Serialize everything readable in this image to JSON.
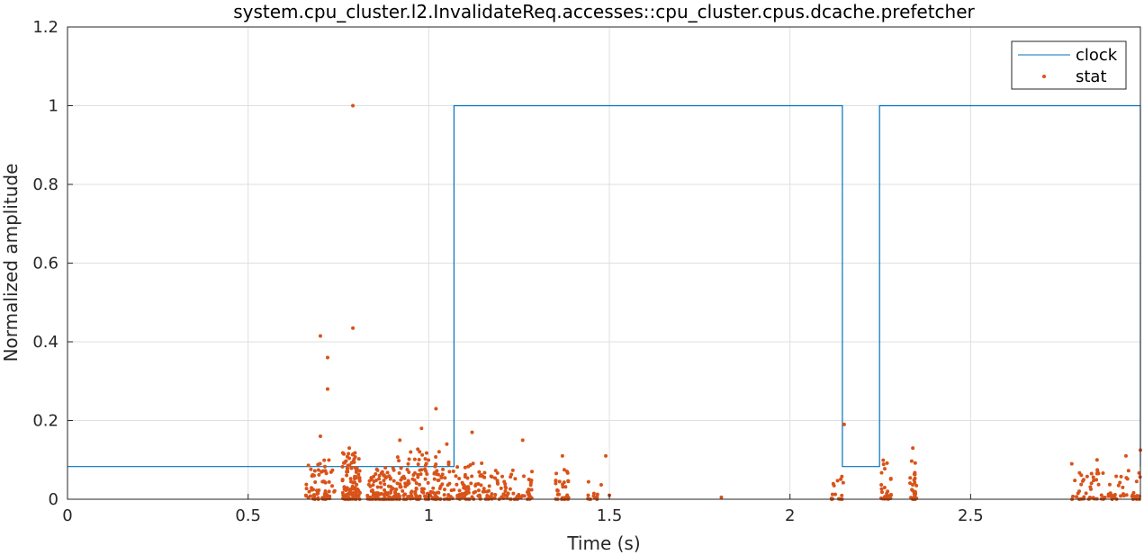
{
  "chart_data": {
    "type": "line",
    "title": "system.cpu_cluster.l2.InvalidateReq.accesses::cpu_cluster.cpus.dcache.prefetcher",
    "xlabel": "Time (s)",
    "ylabel": "Normalized amplitude",
    "xlim": [
      0,
      2.97
    ],
    "ylim": [
      0,
      1.2
    ],
    "xticks": [
      0,
      0.5,
      1,
      1.5,
      2,
      2.5
    ],
    "xtick_labels": [
      "0",
      "0.5",
      "1",
      "1.5",
      "2",
      "2.5"
    ],
    "yticks": [
      0,
      0.2,
      0.4,
      0.6,
      0.8,
      1,
      1.2
    ],
    "ytick_labels": [
      "0",
      "0.2",
      "0.4",
      "0.6",
      "0.8",
      "1",
      "1.2"
    ],
    "grid": true,
    "legend_position": "top-right",
    "colors": {
      "clock": "#0072BD",
      "stat": "#D95319",
      "grid": "#DFDFDF",
      "axis": "#262626"
    },
    "series": [
      {
        "name": "clock",
        "kind": "step-line",
        "x": [
          0,
          1.07,
          1.07,
          2.145,
          2.145,
          2.248,
          2.248,
          2.97,
          2.97
        ],
        "y": [
          0.083,
          0.083,
          1,
          1,
          0.083,
          0.083,
          1,
          1,
          0.083
        ]
      },
      {
        "name": "stat",
        "kind": "scatter",
        "x": [
          0.79,
          0.7,
          0.79,
          0.72,
          0.72,
          1.02,
          0.98,
          0.92,
          1.12,
          1.05,
          0.95,
          0.88,
          0.78,
          0.7,
          1.26,
          1.37,
          1.49,
          2.15,
          2.34,
          2.97,
          2.78,
          2.85,
          2.93,
          1.81,
          1.5,
          0.66
        ],
        "y": [
          1.0,
          0.415,
          0.435,
          0.36,
          0.28,
          0.23,
          0.18,
          0.15,
          0.17,
          0.14,
          0.12,
          0.08,
          0.13,
          0.16,
          0.15,
          0.11,
          0.11,
          0.19,
          0.13,
          0.125,
          0.09,
          0.1,
          0.11,
          0.005,
          0.01,
          0.01
        ],
        "clusters": [
          {
            "x": [
              0.66,
              0.74
            ],
            "y_max": 0.1,
            "count": 70
          },
          {
            "x": [
              0.76,
              0.81
            ],
            "y_max": 0.12,
            "count": 110
          },
          {
            "x": [
              0.83,
              0.91
            ],
            "y_max": 0.08,
            "count": 100
          },
          {
            "x": [
              0.91,
              1.03
            ],
            "y_max": 0.13,
            "count": 140
          },
          {
            "x": [
              1.03,
              1.15
            ],
            "y_max": 0.1,
            "count": 90
          },
          {
            "x": [
              1.15,
              1.29
            ],
            "y_max": 0.08,
            "count": 80
          },
          {
            "x": [
              1.35,
              1.39
            ],
            "y_max": 0.08,
            "count": 35
          },
          {
            "x": [
              1.44,
              1.48
            ],
            "y_max": 0.05,
            "count": 12
          },
          {
            "x": [
              2.11,
              2.15
            ],
            "y_max": 0.06,
            "count": 15
          },
          {
            "x": [
              2.25,
              2.28
            ],
            "y_max": 0.1,
            "count": 25
          },
          {
            "x": [
              2.33,
              2.35
            ],
            "y_max": 0.12,
            "count": 30
          },
          {
            "x": [
              2.78,
              2.97
            ],
            "y_max": 0.09,
            "count": 80
          }
        ]
      }
    ]
  }
}
